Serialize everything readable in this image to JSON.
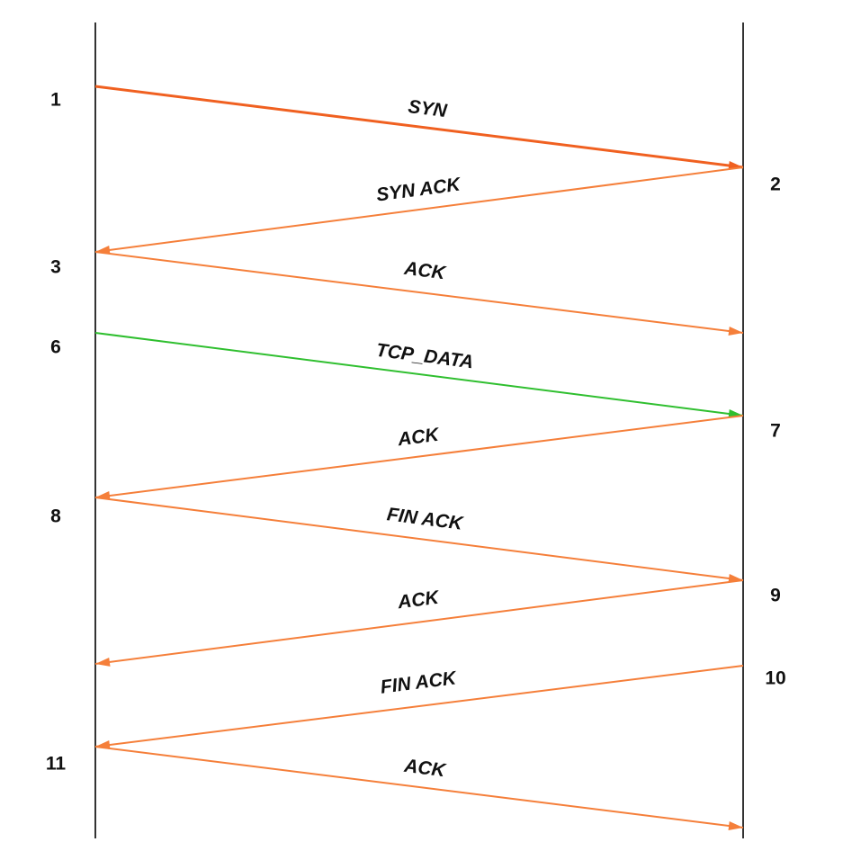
{
  "events": [
    "1",
    "2",
    "3",
    "6",
    "7",
    "8",
    "9",
    "10",
    "11"
  ],
  "messages": [
    "SYN",
    "SYN ACK",
    "ACK",
    "TCP_DATA",
    "ACK",
    "FIN ACK",
    "ACK",
    "FIN ACK",
    "ACK"
  ]
}
